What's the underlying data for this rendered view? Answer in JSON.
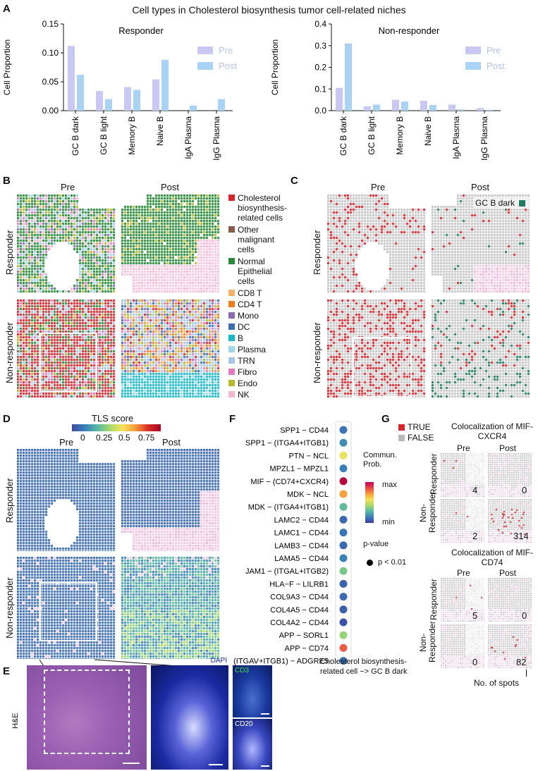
{
  "figure_title": "Cell types in Cholesterol biosynthesis tumor cell-related niches",
  "panel_labels": {
    "A": "A",
    "B": "B",
    "C": "C",
    "D": "D",
    "E": "E",
    "F": "F",
    "G": "G"
  },
  "colors": {
    "pre": "#c8c8f2",
    "post": "#a9d3f5",
    "red": "#d8252b",
    "green": "#2a8a3a",
    "teal": "#1f7a60",
    "grey": "#c4c4c4",
    "pink": "#f2c3e0"
  },
  "chart_data": [
    {
      "type": "bar",
      "title": "Responder",
      "ylabel": "Cell Proportion",
      "ylim": [
        0,
        0.15
      ],
      "yticks": [
        "0.00",
        "0.05",
        "0.10",
        "0.15"
      ],
      "categories": [
        "GC B dark",
        "GC B light",
        "Memory B",
        "Naive B",
        "IgA Plasma",
        "IgG Plasma"
      ],
      "series": [
        {
          "name": "Pre",
          "values": [
            0.112,
            0.034,
            0.041,
            0.054,
            0.0,
            0.0
          ]
        },
        {
          "name": "Post",
          "values": [
            0.062,
            0.02,
            0.036,
            0.088,
            0.009,
            0.02
          ]
        }
      ]
    },
    {
      "type": "bar",
      "title": "Non-responder",
      "ylabel": "Cell Proportion",
      "ylim": [
        0,
        0.4
      ],
      "yticks": [
        "0.0",
        "0.1",
        "0.2",
        "0.3",
        "0.4"
      ],
      "categories": [
        "GC B dark",
        "GC B light",
        "Memory B",
        "Naive B",
        "IgA Plasma",
        "IgG Plasma"
      ],
      "series": [
        {
          "name": "Pre",
          "values": [
            0.105,
            0.02,
            0.05,
            0.046,
            0.028,
            0.012
          ]
        },
        {
          "name": "Post",
          "values": [
            0.31,
            0.028,
            0.042,
            0.026,
            0.006,
            0.004
          ]
        }
      ]
    }
  ],
  "panelB": {
    "col_pre": "Pre",
    "col_post": "Post",
    "row_responder": "Responder",
    "row_nonresponder": "Non-responder",
    "legend": [
      {
        "label": "Cholesterol biosynthesis-related cells",
        "color": "#d8252b"
      },
      {
        "label": "Other malignant cells",
        "color": "#8b5a4a"
      },
      {
        "label": "Normal Epithelial cells",
        "color": "#2a8a3a"
      },
      {
        "label": "CD8 T",
        "color": "#f5b06a"
      },
      {
        "label": "CD4 T",
        "color": "#f07c1c"
      },
      {
        "label": "Mono",
        "color": "#8a6bb0"
      },
      {
        "label": "DC",
        "color": "#3a6db0"
      },
      {
        "label": "B",
        "color": "#1ab7c7"
      },
      {
        "label": "Plasma",
        "color": "#9fd6e8"
      },
      {
        "label": "TRN",
        "color": "#a8c6e6"
      },
      {
        "label": "Fibro",
        "color": "#e27ac0"
      },
      {
        "label": "Endo",
        "color": "#b8b82e"
      },
      {
        "label": "NK",
        "color": "#f4b8d0"
      }
    ]
  },
  "panelC": {
    "col_pre": "Pre",
    "col_post": "Post",
    "row_responder": "Responder",
    "row_nonresponder": "Non-responder",
    "legend_label": "GC B dark"
  },
  "panelD": {
    "title": "TLS score",
    "ticks": [
      "0",
      "0.25",
      "0.5",
      "0.75"
    ],
    "col_pre": "Pre",
    "col_post": "Post",
    "row_responder": "Responder",
    "row_nonresponder": "Non-responder"
  },
  "panelE": {
    "he_label": "H&E",
    "dapi": "DAPI",
    "cd3": "CD3",
    "cd20": "CD20"
  },
  "panelF": {
    "pairs": [
      "SPP1 − CD44",
      "SPP1 − (ITGA4+ITGB1)",
      "PTN − NCL",
      "MPZL1 − MPZL1",
      "MIF − (CD74+CXCR4)",
      "MDK − NCL",
      "MDK − (ITGA4+ITGB1)",
      "LAMC2 − CD44",
      "LAMC1 − CD44",
      "LAMB3 − CD44",
      "LAMA5 − CD44",
      "JAM1 − (ITGAL+ITGB2)",
      "HLA−F − LILRB1",
      "COL9A3 − CD44",
      "COL4A5 − CD44",
      "COL4A2 − CD44",
      "APP − SORL1",
      "APP − CD74",
      "(ITGAV+ITGB1) − ADGRE5"
    ],
    "prob": [
      0.12,
      0.18,
      0.55,
      0.14,
      0.98,
      0.7,
      0.3,
      0.1,
      0.12,
      0.1,
      0.15,
      0.35,
      0.08,
      0.1,
      0.08,
      0.05,
      0.4,
      0.82,
      0.12
    ],
    "legend_title": "Commun. Prob.",
    "legend_max": "max",
    "legend_min": "min",
    "pvalue_title": "p-value",
    "pvalue_label": "p < 0.01",
    "xlabel": "Cholesterol biosynthesis-related cell −> GC B dark"
  },
  "panelG": {
    "true_label": "TRUE",
    "false_label": "FALSE",
    "title1": "Colocalization of MIF-CXCR4",
    "title2": "Colocalization of MIF-CD74",
    "col_pre": "Pre",
    "col_post": "Post",
    "row_responder": "Responder",
    "row_nonresponder": "Non-Responder",
    "counts1": [
      "4",
      "0",
      "2",
      "314"
    ],
    "counts2": [
      "5",
      "0",
      "0",
      "82"
    ],
    "xlabel": "No. of spots"
  }
}
